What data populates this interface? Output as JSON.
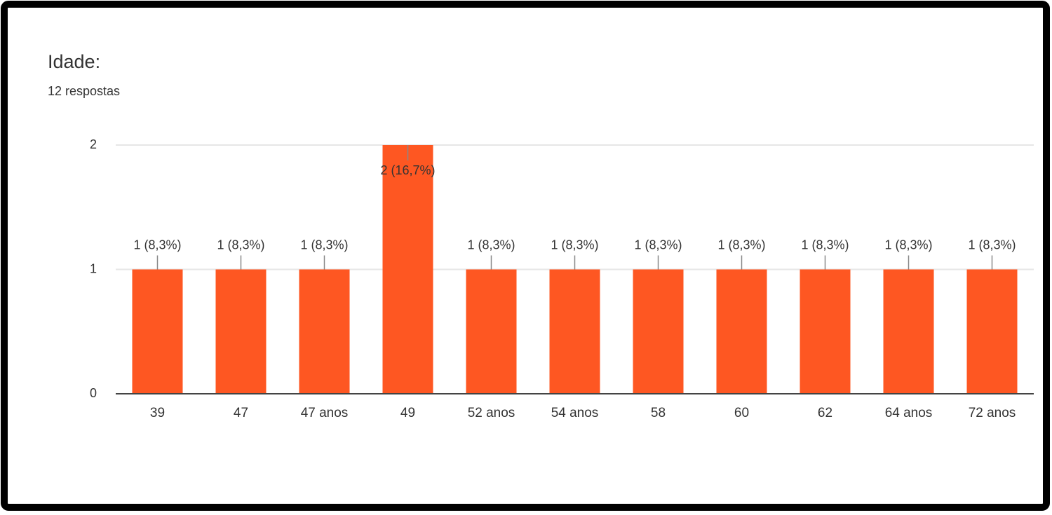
{
  "chart_data": {
    "type": "bar",
    "title": "Idade:",
    "subtitle": "12 respostas",
    "categories": [
      "39",
      "47",
      "47 anos",
      "49",
      "52 anos",
      "54 anos",
      "58",
      "60",
      "62",
      "64 anos",
      "72 anos"
    ],
    "values": [
      1,
      1,
      1,
      2,
      1,
      1,
      1,
      1,
      1,
      1,
      1
    ],
    "value_labels": [
      "1 (8,3%)",
      "1 (8,3%)",
      "1 (8,3%)",
      "2 (16,7%)",
      "1 (8,3%)",
      "1 (8,3%)",
      "1 (8,3%)",
      "1 (8,3%)",
      "1 (8,3%)",
      "1 (8,3%)",
      "1 (8,3%)"
    ],
    "color": "#fe5722",
    "ylim": [
      0,
      2
    ],
    "yticks": [
      0,
      1,
      2
    ],
    "grid": true
  }
}
